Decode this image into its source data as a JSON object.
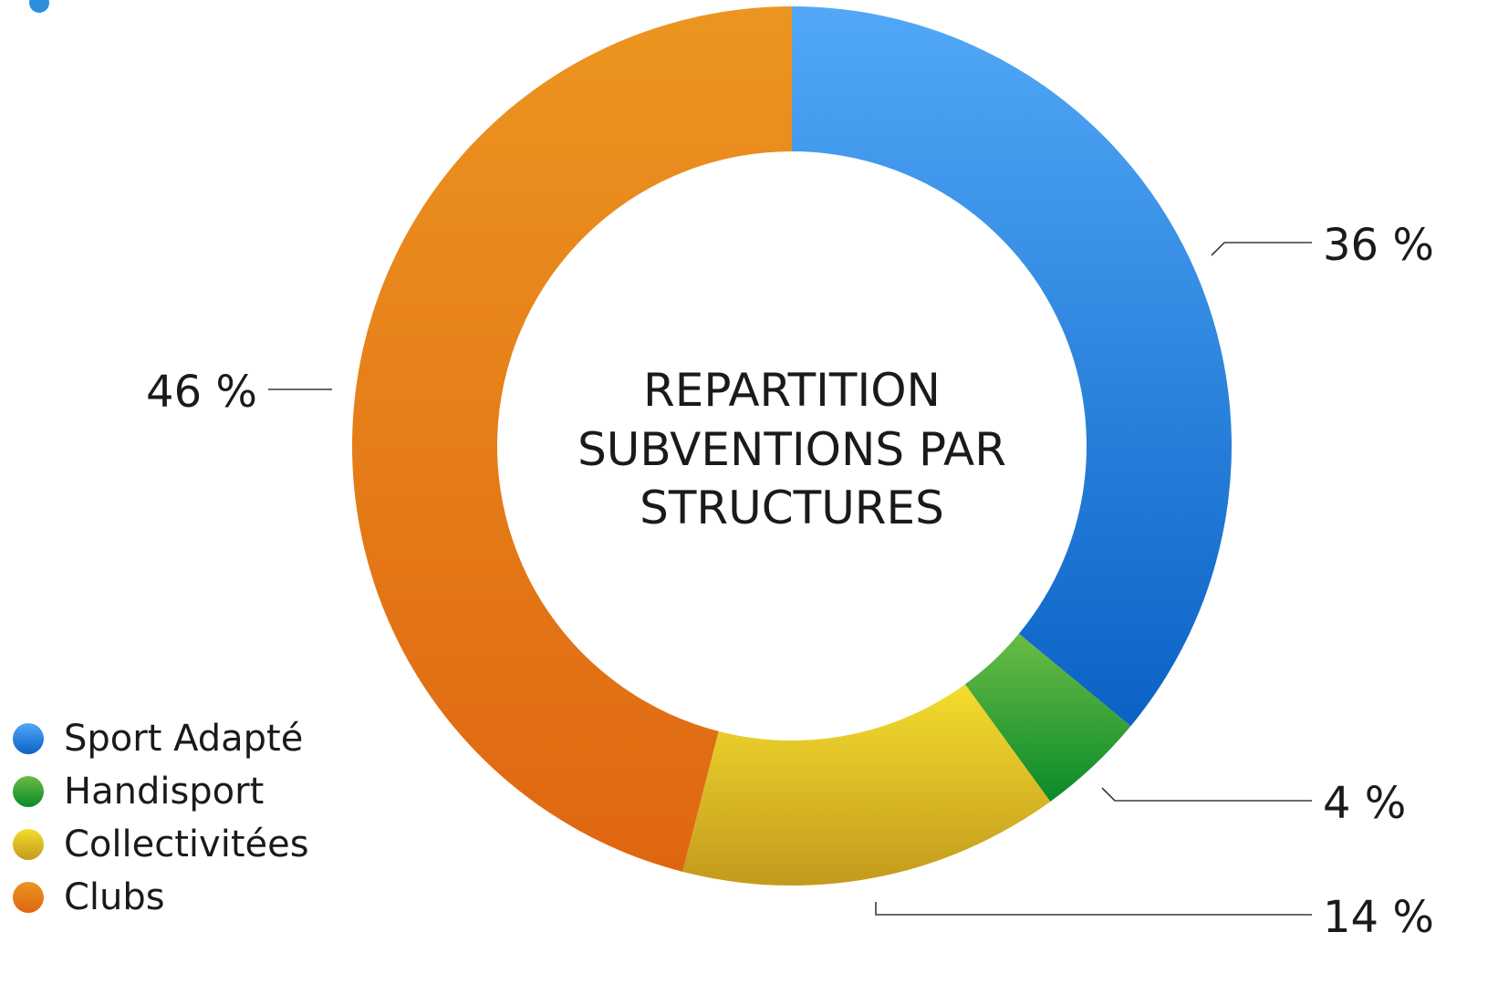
{
  "chart_data": {
    "type": "pie",
    "title": "REPARTITION SUBVENTIONS PAR STRUCTURES",
    "title_lines": [
      "REPARTITION",
      "SUBVENTIONS PAR",
      "STRUCTURES"
    ],
    "series": [
      {
        "name": "Sport Adapté",
        "value": 36,
        "label": "36 %",
        "color_top": "#52a8f7",
        "color_bottom": "#0a62c5"
      },
      {
        "name": "Handisport",
        "value": 4,
        "label": "4 %",
        "color_top": "#6abc45",
        "color_bottom": "#0a8a2a"
      },
      {
        "name": "Collectivitées",
        "value": 14,
        "label": "14 %",
        "color_top": "#f3dd2e",
        "color_bottom": "#c39a1d"
      },
      {
        "name": "Clubs",
        "value": 46,
        "label": "46 %",
        "color_top": "#ec9520",
        "color_bottom": "#df6611"
      }
    ],
    "legend": {
      "placement": "bottom-left"
    },
    "grid": false
  }
}
